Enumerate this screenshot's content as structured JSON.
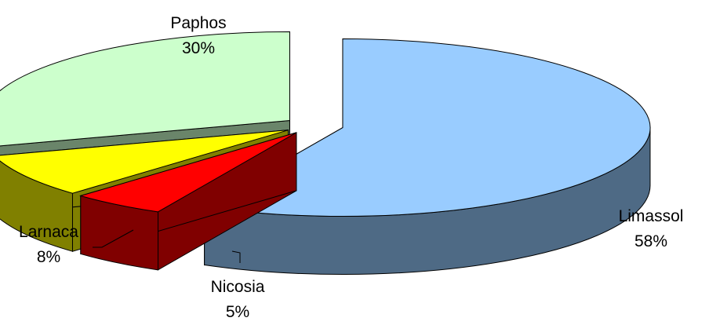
{
  "chart_data": {
    "type": "pie",
    "variant": "3d-exploded",
    "slices": [
      {
        "label": "Limassol",
        "value": 58,
        "value_label": "58%",
        "top_color": "#99ccff",
        "side_color": "#4e6a85"
      },
      {
        "label": "Nicosia",
        "value": 5,
        "value_label": "5%",
        "top_color": "#ff0000",
        "side_color": "#800000"
      },
      {
        "label": "Larnaca",
        "value": 8,
        "value_label": "8%",
        "top_color": "#ffff00",
        "side_color": "#808000"
      },
      {
        "label": "Paphos",
        "value": 30,
        "value_label": "30%",
        "top_color": "#ccffcc",
        "side_color": "#6a856a"
      }
    ],
    "legend": "none",
    "data_labels": "outside"
  }
}
